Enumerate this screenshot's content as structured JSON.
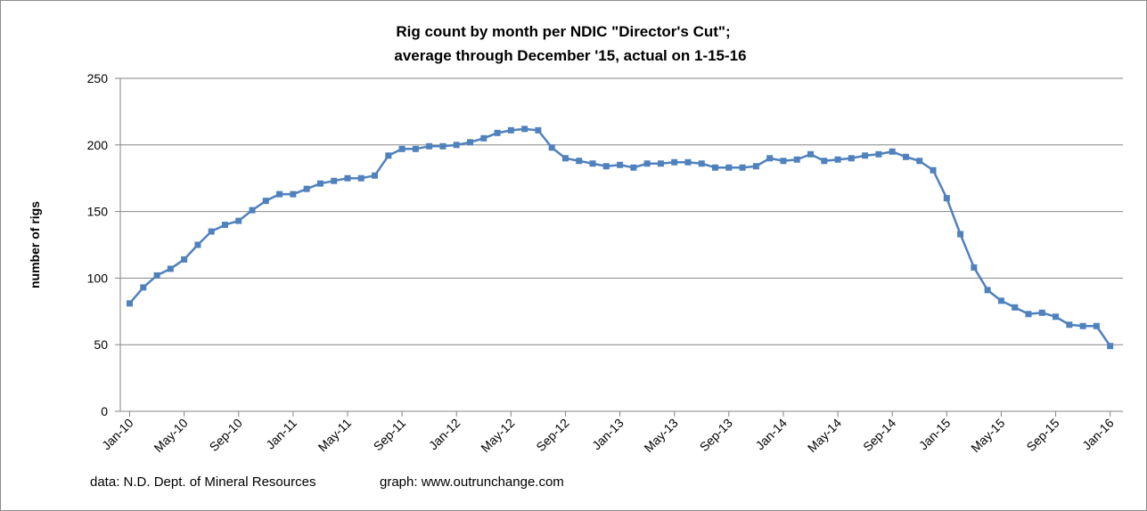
{
  "chart_data": {
    "type": "line",
    "title_line1": "Rig count by month per NDIC \"Director's Cut\";",
    "title_line2": "average through December '15, actual on  1-15-16",
    "ylabel": "number of rigs",
    "xlabel": "",
    "ylim": [
      0,
      250
    ],
    "yticks": [
      0,
      50,
      100,
      150,
      200,
      250
    ],
    "grid": true,
    "legend": "none",
    "series_color": "#4f81bd",
    "xtick_labels": [
      "Jan-10",
      "May-10",
      "Sep-10",
      "Jan-11",
      "May-11",
      "Sep-11",
      "Jan-12",
      "May-12",
      "Sep-12",
      "Jan-13",
      "May-13",
      "Sep-13",
      "Jan-14",
      "May-14",
      "Sep-14",
      "Jan-15",
      "May-15",
      "Sep-15",
      "Jan-16"
    ],
    "series": [
      {
        "values": [
          81,
          93,
          102,
          107,
          114,
          125,
          135,
          140,
          143,
          151,
          158,
          163,
          163,
          167,
          171,
          173,
          175,
          175,
          177,
          192,
          197,
          197,
          199,
          199,
          200,
          202,
          205,
          209,
          211,
          212,
          211,
          198,
          190,
          188,
          186,
          184,
          185,
          183,
          186,
          186,
          187,
          187,
          186,
          183,
          183,
          183,
          184,
          190,
          188,
          189,
          193,
          188,
          189,
          190,
          192,
          193,
          195,
          191,
          188,
          181,
          160,
          133,
          108,
          91,
          83,
          78,
          73,
          74,
          71,
          65,
          64,
          64,
          49
        ]
      }
    ]
  },
  "footer": {
    "source": "data: N.D. Dept. of Mineral Resources",
    "credit": "graph:  www.outrunchange.com"
  }
}
